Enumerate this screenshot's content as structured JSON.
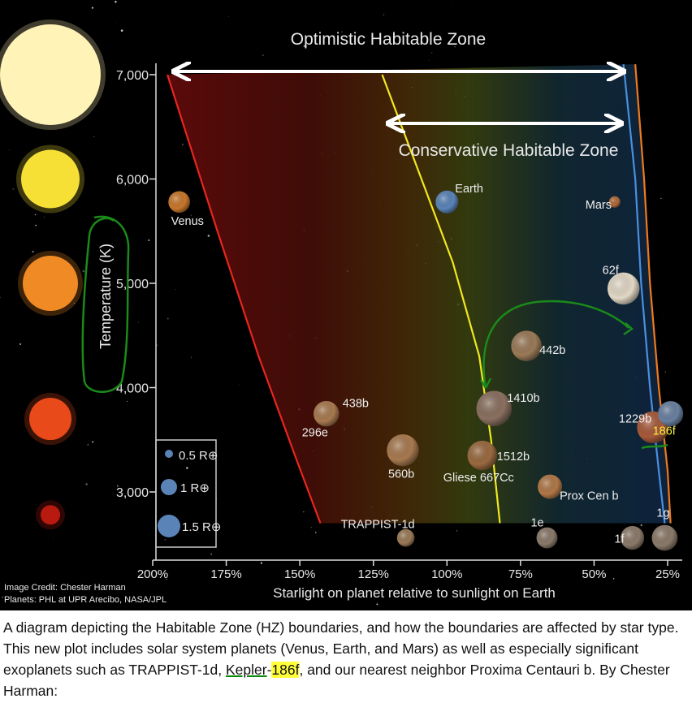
{
  "chart_data": {
    "type": "scatter",
    "title": "",
    "xlabel": "Starlight on planet relative to sunlight on Earth",
    "ylabel": "Temperature (K)",
    "x_reversed": true,
    "x_ticks": [
      "200%",
      "175%",
      "150%",
      "125%",
      "100%",
      "75%",
      "50%",
      "25%"
    ],
    "x_tick_values": [
      200,
      175,
      150,
      125,
      100,
      75,
      50,
      25
    ],
    "y_ticks": [
      "3,000",
      "4,000",
      "5,000",
      "6,000",
      "7,000"
    ],
    "y_tick_values": [
      3000,
      4000,
      5000,
      6000,
      7000
    ],
    "xlim": [
      200,
      25
    ],
    "ylim": [
      2600,
      7100
    ],
    "zones": [
      {
        "name": "Optimistic Habitable Zone",
        "color": "#ffffff"
      },
      {
        "name": "Conservative Habitable Zone",
        "color": "#ffffff"
      }
    ],
    "boundaries": [
      {
        "id": "optimistic-inner",
        "color": "#e8261e",
        "points": [
          [
            195,
            7000
          ],
          [
            178,
            5500
          ],
          [
            164,
            4300
          ],
          [
            151,
            3300
          ],
          [
            143,
            2700
          ]
        ]
      },
      {
        "id": "conservative-inner",
        "color": "#f2e81e",
        "points": [
          [
            122,
            7000
          ],
          [
            110,
            6100
          ],
          [
            98,
            5200
          ],
          [
            89,
            4300
          ],
          [
            85,
            3500
          ],
          [
            82,
            2700
          ]
        ]
      },
      {
        "id": "conservative-outer",
        "color": "#4a90e0",
        "points": [
          [
            40,
            7100
          ],
          [
            36,
            6000
          ],
          [
            34,
            5000
          ],
          [
            31,
            4000
          ],
          [
            28,
            3200
          ],
          [
            26,
            2700
          ]
        ]
      },
      {
        "id": "optimistic-outer",
        "color": "#f07a1c",
        "points": [
          [
            36,
            7100
          ],
          [
            33,
            6000
          ],
          [
            31,
            5000
          ],
          [
            28,
            4000
          ],
          [
            25,
            3200
          ],
          [
            24,
            2700
          ]
        ]
      }
    ],
    "planets": [
      {
        "name": "Venus",
        "x": 191,
        "y": 5780,
        "size": 0.95,
        "color": "#c8782c"
      },
      {
        "name": "Earth",
        "x": 100,
        "y": 5780,
        "size": 1.0,
        "color": "#5a84b8"
      },
      {
        "name": "Mars",
        "x": 43,
        "y": 5780,
        "size": 0.5,
        "color": "#b06a3a"
      },
      {
        "name": "62f",
        "x": 40,
        "y": 4950,
        "size": 1.41,
        "color": "#e2d8c6"
      },
      {
        "name": "442b",
        "x": 73,
        "y": 4400,
        "size": 1.34,
        "color": "#9a7a58"
      },
      {
        "name": "1410b",
        "x": 84,
        "y": 3800,
        "size": 1.55,
        "color": "#8a7060"
      },
      {
        "name": "438b",
        "x": 141,
        "y": 3750,
        "size": 1.12,
        "color": "#a87a50"
      },
      {
        "name": "296e",
        "x": 141,
        "y": 3750,
        "size": 1.5,
        "color": "#a87a50"
      },
      {
        "name": "1229b",
        "x": 30,
        "y": 3620,
        "size": 1.4,
        "color": "#a85a3a"
      },
      {
        "name": "186f",
        "x": 24,
        "y": 3750,
        "size": 1.11,
        "color": "#6a80a0"
      },
      {
        "name": "560b",
        "x": 115,
        "y": 3400,
        "size": 1.4,
        "color": "#a87a50"
      },
      {
        "name": "1512b",
        "x": 88,
        "y": 3350,
        "size": 1.3,
        "color": "#9a6a40"
      },
      {
        "name": "Gliese 667Cc",
        "x": 88,
        "y": 3350,
        "size": 1.54,
        "color": "#b07848"
      },
      {
        "name": "Prox Cen b",
        "x": 65,
        "y": 3050,
        "size": 1.07,
        "color": "#b07848"
      },
      {
        "name": "TRAPPIST-1d",
        "x": 114,
        "y": 2560,
        "size": 0.77,
        "color": "#9a7a58"
      },
      {
        "name": "1e",
        "x": 66,
        "y": 2560,
        "size": 0.92,
        "color": "#8a7a6a"
      },
      {
        "name": "1f",
        "x": 37,
        "y": 2560,
        "size": 1.04,
        "color": "#8a7a6a"
      },
      {
        "name": "1g",
        "x": 26,
        "y": 2560,
        "size": 1.13,
        "color": "#8a7a6a"
      }
    ],
    "legend": {
      "placement": "bottom-left",
      "entries": [
        "0.5 R⊕",
        "1 R⊕",
        "1.5 R⊕"
      ]
    },
    "stars": [
      {
        "id": "star-7000",
        "y": 7000,
        "color": "#fff3b8"
      },
      {
        "id": "star-6000",
        "y": 6000,
        "color": "#f7e036"
      },
      {
        "id": "star-5000",
        "y": 5000,
        "color": "#f08a24"
      },
      {
        "id": "star-4000",
        "y": 3700,
        "color": "#e84a1a"
      },
      {
        "id": "star-3000",
        "y": 2780,
        "color": "#b81a10"
      }
    ]
  },
  "credits": {
    "image": "Image Credit: Chester Harman",
    "planets": "Planets:  PHL at UPR Arecibo, NASA/JPL"
  },
  "caption": {
    "part1": "A diagram depicting the Habitable Zone (HZ) boundaries, and how the boundaries are affected by star type. This new plot includes solar system planets (Venus, Earth, and Mars) as well as especially significant exoplanets such as TRAPPIST-1d, ",
    "kepler": "Kepler",
    "dash": "-",
    "num": "186f",
    "part2": ", and our nearest neighbor Proxima Centauri b. By Chester Harman:"
  }
}
